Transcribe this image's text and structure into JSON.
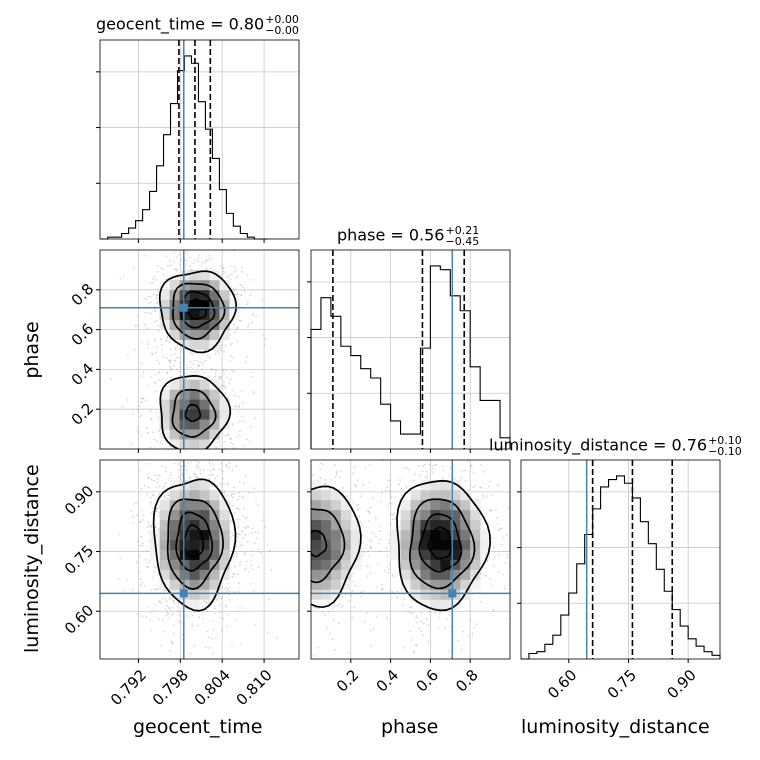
{
  "chart_data": {
    "type": "corner",
    "parameters": [
      "geocent_time",
      "phase",
      "luminosity_distance"
    ],
    "truths": {
      "geocent_time": 0.7985,
      "phase": 0.71,
      "luminosity_distance": 0.645
    },
    "truth_color": "#4682b4",
    "axis_ranges": {
      "geocent_time": [
        0.7865,
        0.815
      ],
      "phase": [
        0.0,
        1.0
      ],
      "luminosity_distance": [
        0.48,
        0.98
      ]
    },
    "titles": {
      "geocent_time": {
        "label": "geocent_time = 0.80",
        "upper": "+0.00",
        "lower": "−0.00"
      },
      "phase": {
        "label": "phase = 0.56",
        "upper": "+0.21",
        "lower": "−0.45"
      },
      "luminosity_distance": {
        "label": "luminosity_distance = 0.76",
        "upper": "+0.10",
        "lower": "−0.10"
      }
    },
    "axis_labels": {
      "x_geocent_time": "geocent_time",
      "x_phase": "phase",
      "x_luminosity_distance": "luminosity_distance",
      "y_phase": "phase",
      "y_luminosity_distance": "luminosity_distance"
    },
    "ticks": {
      "geocent_time": [
        "0.792",
        "0.798",
        "0.804",
        "0.810"
      ],
      "phase": [
        "0.2",
        "0.4",
        "0.6",
        "0.8"
      ],
      "luminosity_distance": [
        "0.60",
        "0.75",
        "0.90"
      ]
    },
    "quantile_lines": {
      "geocent_time": [
        0.7978,
        0.8001,
        0.8023
      ],
      "phase": [
        0.11,
        0.56,
        0.77
      ],
      "luminosity_distance": [
        0.66,
        0.76,
        0.86
      ]
    },
    "histograms": {
      "geocent_time": {
        "bin_edges": [
          0.7866,
          0.7876,
          0.7886,
          0.7896,
          0.7906,
          0.7916,
          0.7926,
          0.7936,
          0.7946,
          0.7956,
          0.7966,
          0.7976,
          0.7986,
          0.7996,
          0.8006,
          0.8016,
          0.8026,
          0.8036,
          0.8046,
          0.8056,
          0.8066,
          0.8076,
          0.8086,
          0.8096,
          0.8106
        ],
        "counts": [
          0.0,
          0.01,
          0.01,
          0.03,
          0.06,
          0.1,
          0.16,
          0.26,
          0.4,
          0.57,
          0.74,
          0.92,
          1.0,
          0.96,
          0.75,
          0.6,
          0.44,
          0.27,
          0.14,
          0.07,
          0.03,
          0.01,
          0.0,
          0.0
        ]
      },
      "phase": {
        "bin_edges": [
          0.0,
          0.05,
          0.1,
          0.15,
          0.2,
          0.25,
          0.3,
          0.35,
          0.4,
          0.45,
          0.5,
          0.55,
          0.6,
          0.65,
          0.7,
          0.75,
          0.8,
          0.85,
          0.9,
          0.95,
          1.0
        ],
        "counts": [
          0.64,
          0.81,
          0.71,
          0.55,
          0.5,
          0.43,
          0.38,
          0.24,
          0.15,
          0.08,
          0.08,
          0.54,
          0.98,
          0.96,
          0.82,
          0.74,
          0.44,
          0.26,
          0.26,
          0.06
        ]
      },
      "luminosity_distance": {
        "bin_edges": [
          0.48,
          0.5,
          0.52,
          0.54,
          0.56,
          0.58,
          0.6,
          0.62,
          0.64,
          0.66,
          0.68,
          0.7,
          0.72,
          0.74,
          0.76,
          0.78,
          0.8,
          0.82,
          0.84,
          0.86,
          0.88,
          0.9,
          0.92,
          0.94,
          0.96,
          0.98
        ],
        "counts": [
          0.0,
          0.03,
          0.04,
          0.08,
          0.13,
          0.24,
          0.36,
          0.52,
          0.68,
          0.82,
          0.94,
          0.98,
          1.0,
          0.96,
          0.88,
          0.75,
          0.63,
          0.49,
          0.37,
          0.27,
          0.18,
          0.11,
          0.07,
          0.04,
          0.02
        ]
      }
    },
    "density_blobs": {
      "geocent_time_vs_phase": [
        {
          "x": 0.8004,
          "y": 0.7,
          "sx": 0.0028,
          "sy": 0.105,
          "w": 1.0
        },
        {
          "x": 0.7998,
          "y": 0.18,
          "sx": 0.0028,
          "sy": 0.11,
          "w": 0.75
        }
      ],
      "geocent_time_vs_luminosity_distance": [
        {
          "x": 0.7999,
          "y": 0.775,
          "sx": 0.003,
          "sy": 0.085,
          "w": 1.0
        }
      ],
      "phase_vs_luminosity_distance": [
        {
          "x": 0.03,
          "y": 0.77,
          "sx": 0.12,
          "sy": 0.085,
          "w": 0.75
        },
        {
          "x": 0.65,
          "y": 0.77,
          "sx": 0.12,
          "sy": 0.085,
          "w": 1.0
        }
      ]
    },
    "grid": true
  }
}
